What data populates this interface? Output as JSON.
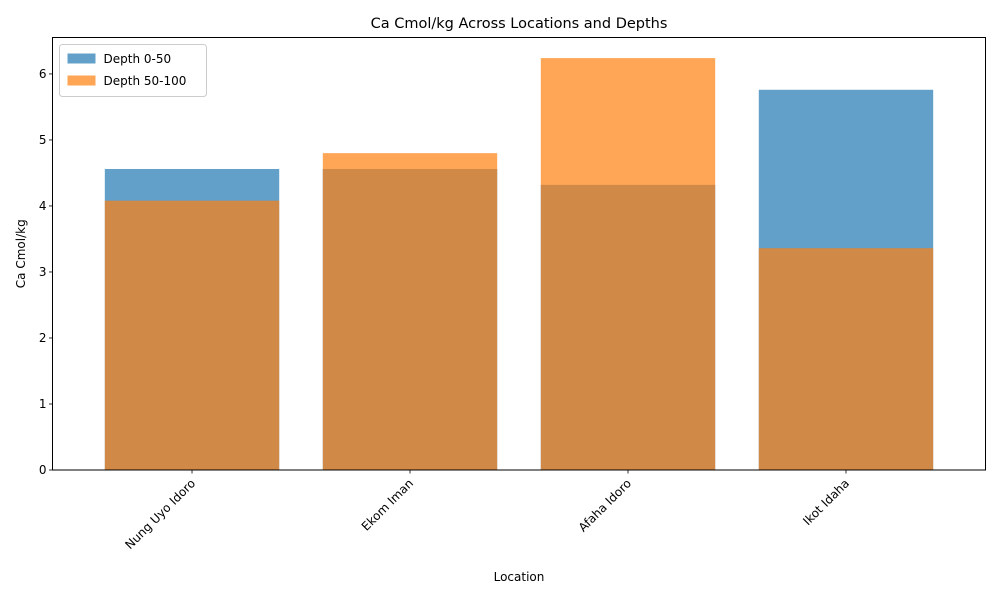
{
  "chart_data": {
    "type": "bar",
    "title": "Ca Cmol/kg Across Locations and Depths",
    "xlabel": "Location",
    "ylabel": "Ca Cmol/kg",
    "categories": [
      "Nung Uyo Idoro",
      "Ekom Iman",
      "Afaha Idoro",
      "Ikot Idaha"
    ],
    "series": [
      {
        "name": "Depth 0-50",
        "values": [
          4.56,
          4.56,
          4.32,
          5.76
        ],
        "color": "#1f77b4",
        "opacity": 0.7
      },
      {
        "name": "Depth 50-100",
        "values": [
          4.08,
          4.8,
          6.24,
          3.36
        ],
        "color": "#ff7f0e",
        "opacity": 0.7
      }
    ],
    "ylim": [
      0,
      6.552
    ],
    "yticks": [
      0,
      1,
      2,
      3,
      4,
      5,
      6
    ],
    "xtick_rotation": 45,
    "grid": false,
    "legend_position": "top-left",
    "bars_overlap": true
  }
}
